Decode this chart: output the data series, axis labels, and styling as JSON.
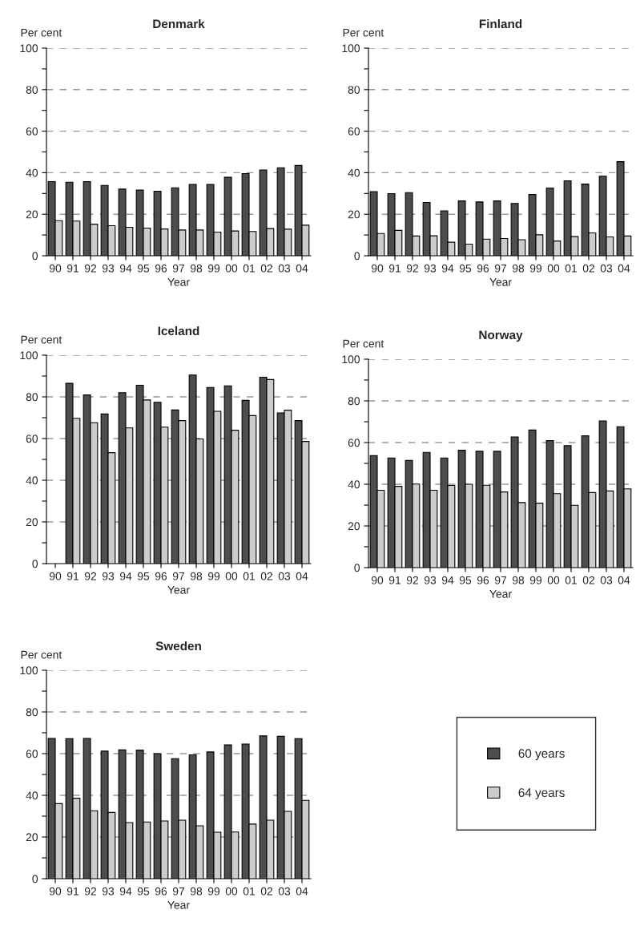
{
  "chart_data": [
    {
      "type": "bar",
      "title": "Denmark",
      "ylabel": "Per cent",
      "xlabel": "Year",
      "categories": [
        "90",
        "91",
        "92",
        "93",
        "94",
        "95",
        "96",
        "97",
        "98",
        "99",
        "00",
        "01",
        "02",
        "03",
        "04"
      ],
      "ylim": [
        0,
        100
      ],
      "yticks": [
        0,
        {
          "value": 10,
          "label": null
        },
        20,
        {
          "value": 30,
          "label": null
        },
        40,
        {
          "value": 50,
          "label": null
        },
        60,
        {
          "value": 70,
          "label": null
        },
        80,
        {
          "value": 90,
          "label": null
        },
        100
      ],
      "grid": "y",
      "legend": false,
      "series": [
        {
          "color": "#4d4d4d",
          "values": [
            35.7,
            35.4,
            35.7,
            33.9,
            32.1,
            31.6,
            31.1,
            32.7,
            34.3,
            34.3,
            37.8,
            39.6,
            41.3,
            42.4,
            43.5
          ]
        },
        {
          "color": "#cccccc",
          "values": [
            16.9,
            16.7,
            15.2,
            14.5,
            13.7,
            13.3,
            12.9,
            12.4,
            12.4,
            11.4,
            11.9,
            11.7,
            13.1,
            12.8,
            14.7
          ]
        }
      ]
    },
    {
      "type": "bar",
      "title": "Finland",
      "ylabel": "Per cent",
      "xlabel": "Year",
      "categories": [
        "90",
        "91",
        "92",
        "93",
        "94",
        "95",
        "96",
        "97",
        "98",
        "99",
        "00",
        "01",
        "02",
        "03",
        "04"
      ],
      "ylim": [
        0,
        100
      ],
      "yticks": [
        0,
        {
          "value": 10,
          "label": null
        },
        20,
        {
          "value": 30,
          "label": null
        },
        40,
        {
          "value": 50,
          "label": null
        },
        60,
        {
          "value": 70,
          "label": null
        },
        80,
        {
          "value": 90,
          "label": null
        },
        100
      ],
      "grid": "y",
      "legend": false,
      "series": [
        {
          "color": "#4d4d4d",
          "values": [
            30.9,
            29.9,
            30.4,
            25.7,
            21.6,
            26.4,
            25.9,
            26.4,
            25.2,
            29.5,
            32.6,
            36.1,
            34.5,
            38.3,
            45.3
          ]
        },
        {
          "color": "#cccccc",
          "values": [
            10.7,
            12.2,
            9.5,
            9.6,
            6.5,
            5.6,
            8.0,
            8.3,
            7.7,
            10.1,
            7.1,
            9.2,
            11.0,
            9.1,
            9.5
          ]
        }
      ]
    },
    {
      "type": "bar",
      "title": "Iceland",
      "ylabel": "Per cent",
      "xlabel": "Year",
      "categories": [
        "90",
        "91",
        "92",
        "93",
        "94",
        "95",
        "96",
        "97",
        "98",
        "99",
        "00",
        "01",
        "02",
        "03",
        "04"
      ],
      "ylim": [
        0,
        100
      ],
      "yticks": [
        0,
        {
          "value": 10,
          "label": null
        },
        20,
        {
          "value": 30,
          "label": null
        },
        40,
        {
          "value": 50,
          "label": null
        },
        60,
        {
          "value": 70,
          "label": null
        },
        80,
        {
          "value": 90,
          "label": null
        },
        100
      ],
      "grid": "y",
      "legend": false,
      "series": [
        {
          "color": "#4d4d4d",
          "values": [
            null,
            86.5,
            80.9,
            71.8,
            82.0,
            85.6,
            77.4,
            73.7,
            90.5,
            84.5,
            85.3,
            78.3,
            89.4,
            72.3,
            68.6
          ]
        },
        {
          "color": "#cccccc",
          "values": [
            null,
            69.7,
            67.6,
            53.2,
            65.1,
            78.5,
            65.5,
            68.6,
            59.8,
            73.1,
            64.0,
            71.0,
            88.3,
            73.6,
            58.6
          ]
        }
      ]
    },
    {
      "type": "bar",
      "title": "Norway",
      "ylabel": "Per cent",
      "xlabel": "Year",
      "categories": [
        "90",
        "91",
        "92",
        "93",
        "94",
        "95",
        "96",
        "97",
        "98",
        "99",
        "00",
        "01",
        "02",
        "03",
        "04"
      ],
      "ylim": [
        0,
        100
      ],
      "yticks": [
        0,
        {
          "value": 10,
          "label": null
        },
        20,
        {
          "value": 30,
          "label": null
        },
        40,
        {
          "value": 50,
          "label": null
        },
        60,
        {
          "value": 70,
          "label": null
        },
        80,
        {
          "value": 90,
          "label": null
        },
        100
      ],
      "grid": "y",
      "legend": false,
      "series": [
        {
          "color": "#4d4d4d",
          "values": [
            53.7,
            52.6,
            51.4,
            55.3,
            52.6,
            56.3,
            55.8,
            55.8,
            62.7,
            66.0,
            60.9,
            58.5,
            63.2,
            70.4,
            67.6
          ]
        },
        {
          "color": "#cccccc",
          "values": [
            37.1,
            39.0,
            40.1,
            37.1,
            39.4,
            40.0,
            39.5,
            36.3,
            31.2,
            30.9,
            35.5,
            29.9,
            36.0,
            36.8,
            37.8
          ]
        }
      ]
    },
    {
      "type": "bar",
      "title": "Sweden",
      "ylabel": "Per cent",
      "xlabel": "Year",
      "categories": [
        "90",
        "91",
        "92",
        "93",
        "94",
        "95",
        "96",
        "97",
        "98",
        "99",
        "00",
        "01",
        "02",
        "03",
        "04"
      ],
      "ylim": [
        0,
        100
      ],
      "yticks": [
        0,
        {
          "value": 10,
          "label": null
        },
        20,
        {
          "value": 30,
          "label": null
        },
        40,
        {
          "value": 50,
          "label": null
        },
        60,
        {
          "value": 70,
          "label": null
        },
        80,
        {
          "value": 90,
          "label": null
        },
        100
      ],
      "grid": "y",
      "legend": "right",
      "series": [
        {
          "name": "60 years",
          "color": "#4d4d4d",
          "values": [
            67.3,
            67.2,
            67.3,
            61.2,
            61.8,
            61.7,
            60.0,
            57.6,
            59.4,
            60.8,
            64.2,
            64.6,
            68.5,
            68.3,
            67.2
          ]
        },
        {
          "name": "64 years",
          "color": "#cccccc",
          "values": [
            36.0,
            38.6,
            32.6,
            31.8,
            26.9,
            27.2,
            27.7,
            28.1,
            25.4,
            22.3,
            22.4,
            26.2,
            28.1,
            32.3,
            37.6
          ]
        }
      ]
    }
  ]
}
